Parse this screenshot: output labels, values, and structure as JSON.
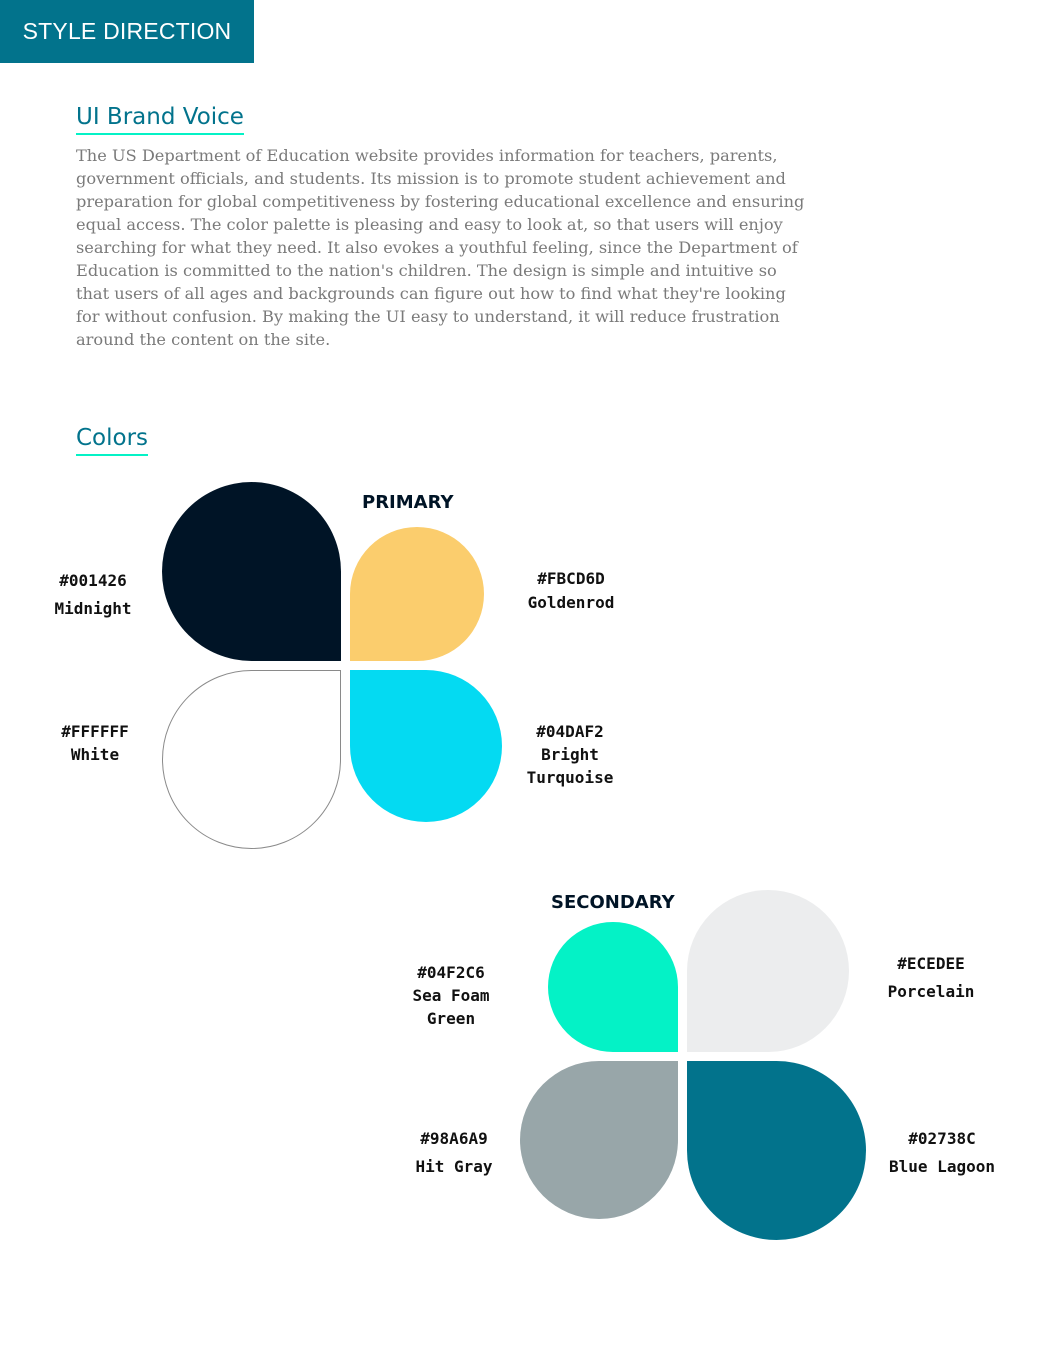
{
  "header": {
    "label": "STYLE DIRECTION"
  },
  "brand_voice": {
    "title": "UI Brand Voice",
    "body": "The US Department of Education website provides information for teachers, parents, government officials, and students. Its mission is to promote student achievement and preparation for global competitiveness by fostering educational excellence and ensuring equal access. The color palette is pleasing and easy to look at, so that users will enjoy searching for what they need. It also evokes a youthful feeling, since the Department of Education is committed to the nation's children. The design is simple and intuitive so that users of all ages and backgrounds can figure out how to find what they're looking for without confusion. By making the UI easy to understand, it will reduce frustration around the content on the site."
  },
  "colors": {
    "title": "Colors",
    "primary": {
      "label": "PRIMARY",
      "swatches": [
        {
          "hex": "#001426",
          "name": "Midnight",
          "color": "#001426"
        },
        {
          "hex": "#FBCD6D",
          "name": "Goldenrod",
          "color": "#FBCD6D"
        },
        {
          "hex": "#FFFFFF",
          "name": "White",
          "color": "#FFFFFF"
        },
        {
          "hex": "#04DAF2",
          "name_line1": "Bright",
          "name_line2": "Turquoise",
          "color": "#04DAF2"
        }
      ]
    },
    "secondary": {
      "label": "SECONDARY",
      "swatches": [
        {
          "hex": "#04F2C6",
          "name_line1": "Sea Foam",
          "name_line2": "Green",
          "color": "#04F2C6"
        },
        {
          "hex": "#ECEDEE",
          "name": "Porcelain",
          "color": "#ECEDEE"
        },
        {
          "hex": "#98A6A9",
          "name": "Hit Gray",
          "color": "#98A6A9"
        },
        {
          "hex": "#02738C",
          "name": "Blue Lagoon",
          "color": "#02738C"
        }
      ]
    }
  }
}
